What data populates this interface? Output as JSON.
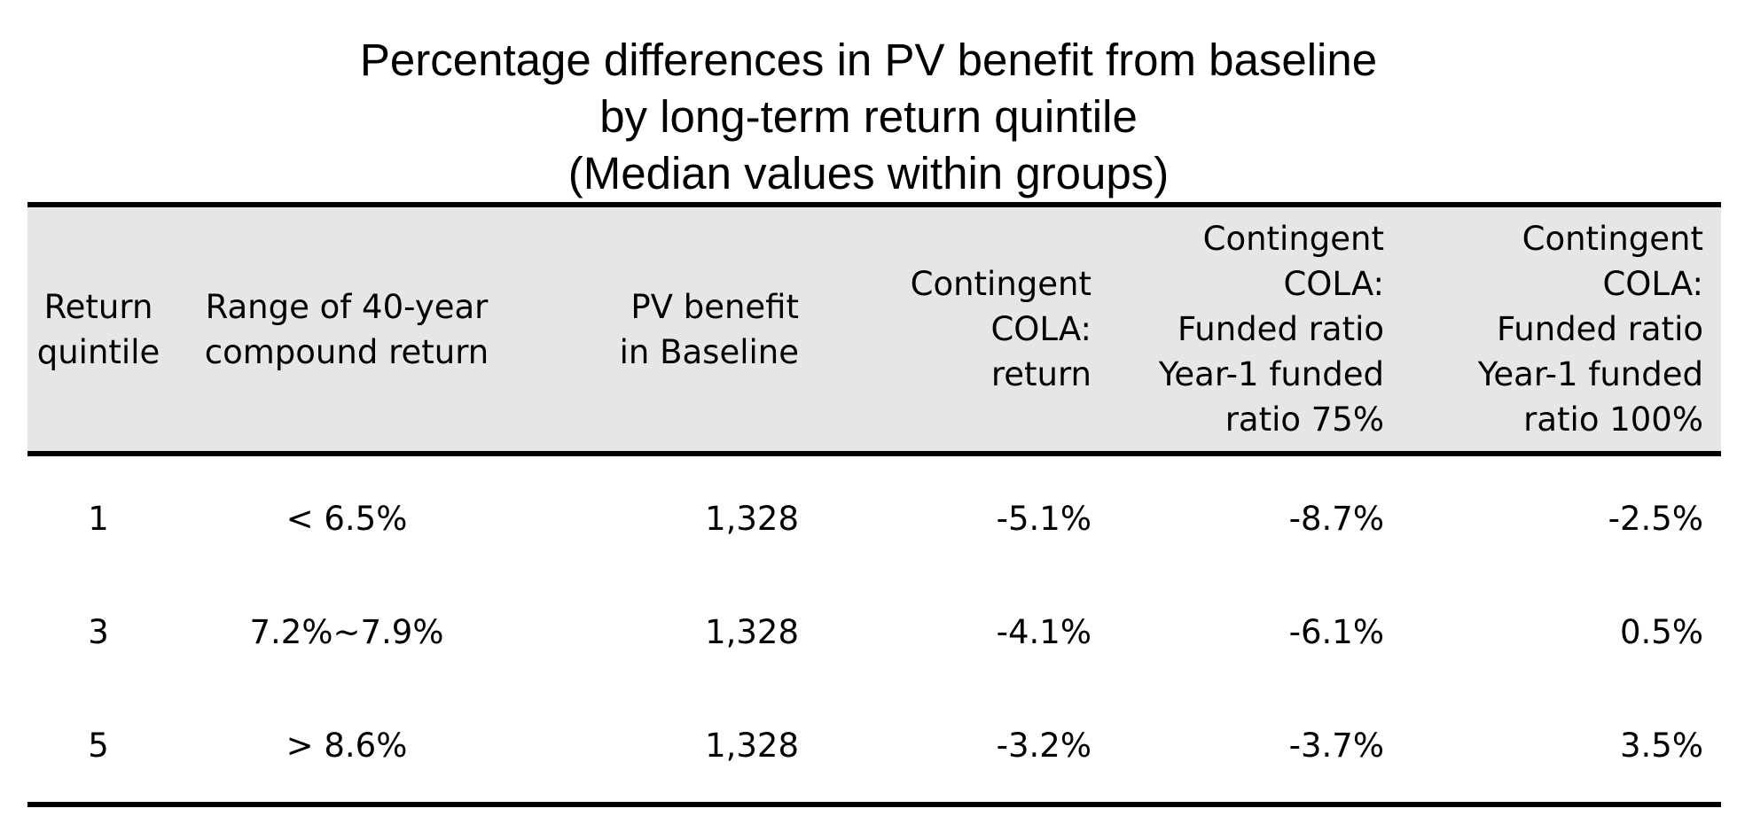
{
  "chart_data": {
    "type": "table",
    "title_lines": [
      "Percentage differences in PV benefit from baseline",
      "by long-term return quintile",
      "(Median values within groups)"
    ],
    "columns": [
      "Return\nquintile",
      "Range of 40-year\ncompound return",
      "PV benefit\nin Baseline",
      "Contingent\nCOLA:\nreturn",
      "Contingent\nCOLA:\nFunded ratio\nYear-1 funded\nratio 75%",
      "Contingent\nCOLA:\nFunded ratio\nYear-1 funded\nratio 100%"
    ],
    "rows": [
      [
        "1",
        "< 6.5%",
        "1,328",
        "-5.1%",
        "-8.7%",
        "-2.5%"
      ],
      [
        "3",
        "7.2%~7.9%",
        "1,328",
        "-4.1%",
        "-6.1%",
        "0.5%"
      ],
      [
        "5",
        "> 8.6%",
        "1,328",
        "-3.2%",
        "-3.7%",
        "3.5%"
      ]
    ]
  },
  "colors": {
    "header_background": "#e6e6e6",
    "rule": "#000000",
    "text": "#000000"
  }
}
